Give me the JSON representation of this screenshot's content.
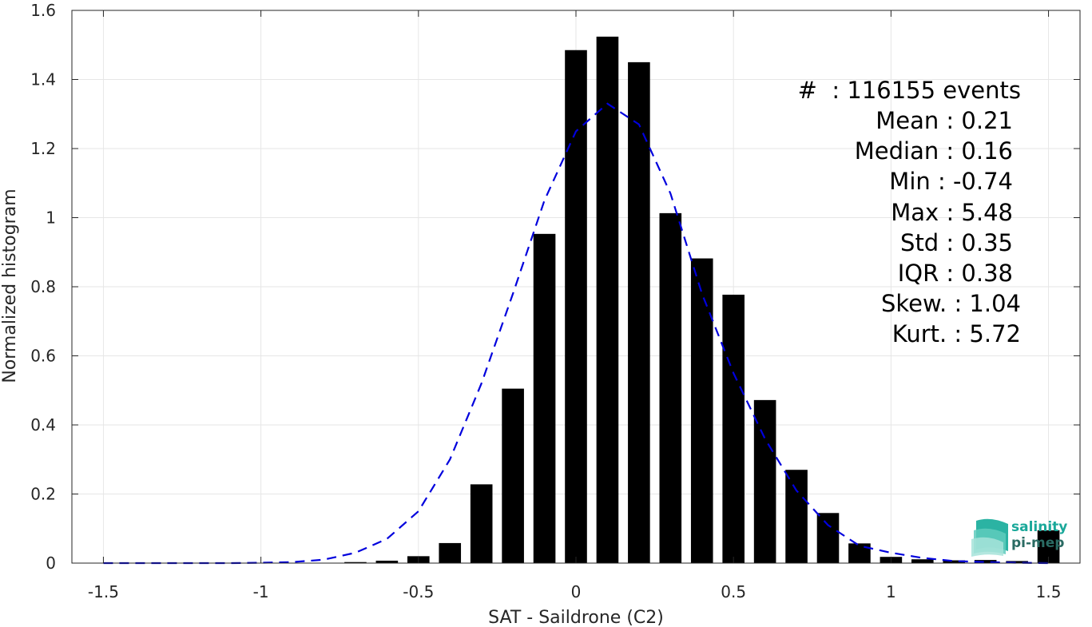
{
  "chart_data": {
    "type": "bar",
    "xlabel": "SAT - Saildrone (C2)",
    "ylabel": "Normalized histogram",
    "xlim": [
      -1.6,
      1.6
    ],
    "ylim": [
      0,
      1.6
    ],
    "xticks": [
      -1.5,
      -1,
      -0.5,
      0,
      0.5,
      1,
      1.5
    ],
    "xtick_labels": [
      "-1.5",
      "-1",
      "-0.5",
      "0",
      "0.5",
      "1",
      "1.5"
    ],
    "yticks": [
      0,
      0.2,
      0.4,
      0.6,
      0.8,
      1,
      1.2,
      1.4,
      1.6
    ],
    "ytick_labels": [
      "0",
      "0.2",
      "0.4",
      "0.6",
      "0.8",
      "1",
      "1.2",
      "1.4",
      "1.6"
    ],
    "grid": true,
    "bar_width": 0.07,
    "bars": {
      "x": [
        -0.7,
        -0.6,
        -0.5,
        -0.4,
        -0.3,
        -0.2,
        -0.1,
        0.0,
        0.1,
        0.2,
        0.3,
        0.4,
        0.5,
        0.6,
        0.7,
        0.8,
        0.9,
        1.0,
        1.1,
        1.2,
        1.3,
        1.4,
        1.5
      ],
      "values": [
        0.003,
        0.007,
        0.02,
        0.058,
        0.228,
        0.505,
        0.953,
        1.485,
        1.524,
        1.45,
        1.013,
        0.882,
        0.777,
        0.472,
        0.27,
        0.145,
        0.057,
        0.018,
        0.011,
        0.008,
        0.009,
        0.006,
        0.095
      ],
      "color": "#000000"
    },
    "fit_curve": {
      "style": "dashed",
      "color": "#0000dd",
      "x": [
        -1.5,
        -1.4,
        -1.3,
        -1.2,
        -1.1,
        -1.0,
        -0.9,
        -0.8,
        -0.7,
        -0.6,
        -0.5,
        -0.4,
        -0.3,
        -0.2,
        -0.1,
        0.0,
        0.1,
        0.2,
        0.3,
        0.4,
        0.5,
        0.6,
        0.7,
        0.8,
        0.9,
        1.0,
        1.1,
        1.2,
        1.3,
        1.4,
        1.5
      ],
      "y": [
        0.0,
        0.0,
        0.0,
        0.0,
        0.0,
        0.001,
        0.003,
        0.01,
        0.03,
        0.07,
        0.15,
        0.3,
        0.52,
        0.78,
        1.05,
        1.25,
        1.33,
        1.27,
        1.07,
        0.78,
        0.55,
        0.36,
        0.21,
        0.11,
        0.05,
        0.03,
        0.015,
        0.006,
        0.003,
        0.001,
        0.0
      ]
    },
    "annotation": {
      "lines": [
        "#  : 116155 events",
        "Mean : 0.21",
        "Median : 0.16",
        "Min : -0.74",
        "Max : 5.48",
        "Std : 0.35",
        "IQR : 0.38",
        "Skew. : 1.04",
        "Kurt. : 5.72"
      ]
    }
  },
  "logo": {
    "line1": "salinity",
    "line2": "pi-mep",
    "color_primary": "#1aa89a",
    "color_secondary": "#2a6b63"
  }
}
